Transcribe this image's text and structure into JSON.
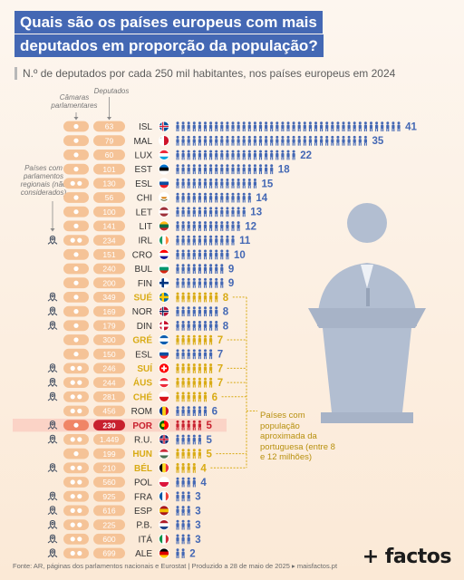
{
  "title_line1": "Quais são os países europeus com mais",
  "title_line2": "deputados em proporção da população?",
  "subtitle": "N.º de deputados por cada 250 mil habitantes, nos países europeus em 2024",
  "header_chambers": "Câmaras parlamentares",
  "header_deputies": "Deputados",
  "regional_note": "Países com parlamentos regionais (não considerados)",
  "legend_text": "Países com população aproximada da portuguesa (entre 8 e 12 milhões)",
  "footer_source": "Fonte: AR, páginas dos parlamentos nacionais e Eurostat",
  "footer_date": "Produzido a 28 de maio de 2025",
  "footer_site": "▸ maisfactos.pt",
  "brand": "+ factos",
  "colors": {
    "default": "#4468b4",
    "similar": "#d9ab15",
    "portugal": "#c8202e",
    "pill": "#f5c397",
    "title_bg": "#4468b4"
  },
  "chart_data": {
    "type": "table",
    "title": "Quais são os países europeus com mais deputados em proporção da população?",
    "subtitle": "N.º de deputados por cada 250 mil habitantes, nos países europeus em 2024",
    "rows": [
      {
        "country": "ISL",
        "chambers": 1,
        "deputies": "63",
        "value": 41,
        "regional": false,
        "group": "default"
      },
      {
        "country": "MAL",
        "chambers": 1,
        "deputies": "79",
        "value": 35,
        "regional": false,
        "group": "default"
      },
      {
        "country": "LUX",
        "chambers": 1,
        "deputies": "60",
        "value": 22,
        "regional": false,
        "group": "default"
      },
      {
        "country": "EST",
        "chambers": 1,
        "deputies": "101",
        "value": 18,
        "regional": false,
        "group": "default"
      },
      {
        "country": "ESL",
        "chambers": 2,
        "deputies": "130",
        "value": 15,
        "regional": false,
        "group": "default"
      },
      {
        "country": "CHI",
        "chambers": 1,
        "deputies": "56",
        "value": 14,
        "regional": false,
        "group": "default"
      },
      {
        "country": "LET",
        "chambers": 1,
        "deputies": "100",
        "value": 13,
        "regional": false,
        "group": "default"
      },
      {
        "country": "LIT",
        "chambers": 1,
        "deputies": "141",
        "value": 12,
        "regional": false,
        "group": "default"
      },
      {
        "country": "IRL",
        "chambers": 2,
        "deputies": "234",
        "value": 11,
        "regional": true,
        "group": "default"
      },
      {
        "country": "CRO",
        "chambers": 1,
        "deputies": "151",
        "value": 10,
        "regional": false,
        "group": "default"
      },
      {
        "country": "BUL",
        "chambers": 1,
        "deputies": "240",
        "value": 9,
        "regional": false,
        "group": "default"
      },
      {
        "country": "FIN",
        "chambers": 1,
        "deputies": "200",
        "value": 9,
        "regional": false,
        "group": "default"
      },
      {
        "country": "SUÉ",
        "chambers": 1,
        "deputies": "349",
        "value": 8,
        "regional": true,
        "group": "similar"
      },
      {
        "country": "NOR",
        "chambers": 1,
        "deputies": "169",
        "value": 8,
        "regional": true,
        "group": "default"
      },
      {
        "country": "DIN",
        "chambers": 1,
        "deputies": "179",
        "value": 8,
        "regional": true,
        "group": "default"
      },
      {
        "country": "GRÉ",
        "chambers": 1,
        "deputies": "300",
        "value": 7,
        "regional": false,
        "group": "similar"
      },
      {
        "country": "ESL",
        "chambers": 1,
        "deputies": "150",
        "value": 7,
        "regional": false,
        "group": "default"
      },
      {
        "country": "SUÍ",
        "chambers": 2,
        "deputies": "246",
        "value": 7,
        "regional": true,
        "group": "similar"
      },
      {
        "country": "ÁUS",
        "chambers": 2,
        "deputies": "244",
        "value": 7,
        "regional": true,
        "group": "similar"
      },
      {
        "country": "CHÉ",
        "chambers": 2,
        "deputies": "281",
        "value": 6,
        "regional": true,
        "group": "similar"
      },
      {
        "country": "ROM",
        "chambers": 2,
        "deputies": "456",
        "value": 6,
        "regional": false,
        "group": "default"
      },
      {
        "country": "POR",
        "chambers": 1,
        "deputies": "230",
        "value": 5,
        "regional": true,
        "group": "portugal"
      },
      {
        "country": "R.U.",
        "chambers": 2,
        "deputies": "1.449",
        "value": 5,
        "regional": true,
        "group": "default"
      },
      {
        "country": "HUN",
        "chambers": 1,
        "deputies": "199",
        "value": 5,
        "regional": false,
        "group": "similar"
      },
      {
        "country": "BÉL",
        "chambers": 2,
        "deputies": "210",
        "value": 4,
        "regional": true,
        "group": "similar"
      },
      {
        "country": "POL",
        "chambers": 2,
        "deputies": "560",
        "value": 4,
        "regional": false,
        "group": "default"
      },
      {
        "country": "FRA",
        "chambers": 2,
        "deputies": "925",
        "value": 3,
        "regional": true,
        "group": "default"
      },
      {
        "country": "ESP",
        "chambers": 2,
        "deputies": "616",
        "value": 3,
        "regional": true,
        "group": "default"
      },
      {
        "country": "P.B.",
        "chambers": 2,
        "deputies": "225",
        "value": 3,
        "regional": true,
        "group": "default"
      },
      {
        "country": "ITÁ",
        "chambers": 2,
        "deputies": "600",
        "value": 3,
        "regional": true,
        "group": "default"
      },
      {
        "country": "ALE",
        "chambers": 2,
        "deputies": "699",
        "value": 2,
        "regional": true,
        "group": "default"
      }
    ]
  }
}
